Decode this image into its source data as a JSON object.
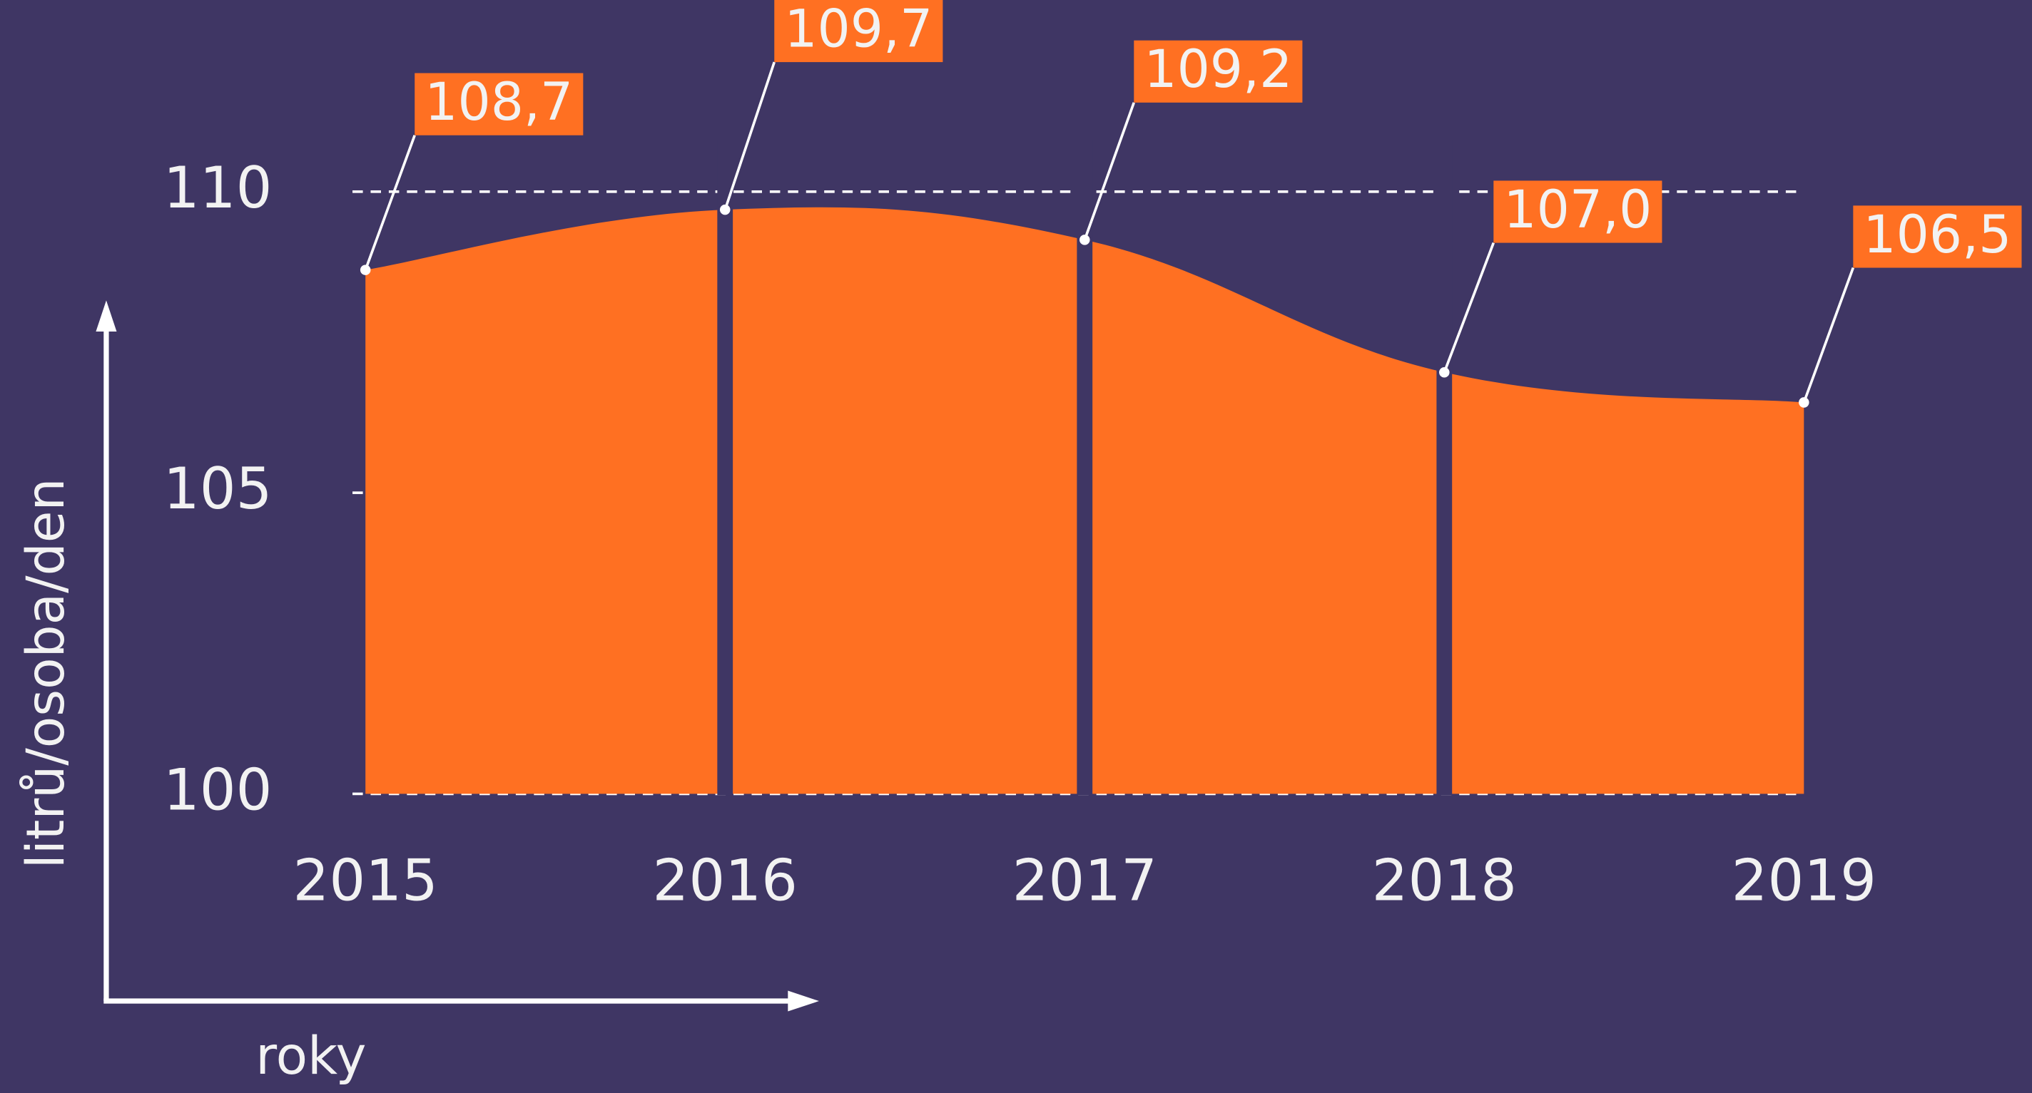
{
  "chart_data": {
    "type": "area",
    "categories": [
      "2015",
      "2016",
      "2017",
      "2018",
      "2019"
    ],
    "values": [
      108.7,
      109.7,
      109.2,
      107.0,
      106.5
    ],
    "value_labels": [
      "108,7",
      "109,7",
      "109,2",
      "107,0",
      "106,5"
    ],
    "color": "#ff7022",
    "ylim": [
      100,
      110
    ],
    "yticks": [
      100,
      105,
      110
    ],
    "grid": true,
    "y_label": "litrů/osoba/den",
    "x_label": "roky"
  }
}
